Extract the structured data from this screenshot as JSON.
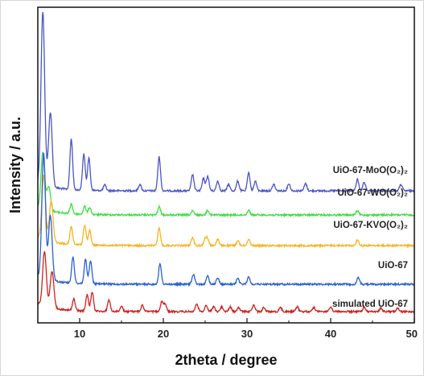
{
  "chart_data": {
    "type": "line",
    "title": "",
    "xlabel": "2theta / degree",
    "ylabel": "Intensity / a.u.",
    "xlim": [
      5,
      50
    ],
    "x_ticks": [
      10,
      20,
      30,
      40,
      50
    ],
    "y_ticks": [],
    "grid": false,
    "legend": "inline-right",
    "series": [
      {
        "name": "UiO-67-MoO(O₂)₂",
        "color": "#4b55c8",
        "baseline": 236,
        "peaks": [
          [
            5.6,
            215
          ],
          [
            6.5,
            92
          ],
          [
            9.0,
            63
          ],
          [
            10.5,
            45
          ],
          [
            11.1,
            40
          ],
          [
            13.0,
            7
          ],
          [
            17.2,
            8
          ],
          [
            19.5,
            42
          ],
          [
            23.5,
            20
          ],
          [
            24.8,
            15
          ],
          [
            25.3,
            18
          ],
          [
            26.5,
            12
          ],
          [
            27.8,
            8
          ],
          [
            28.9,
            12
          ],
          [
            30.2,
            22
          ],
          [
            31.0,
            12
          ],
          [
            33.2,
            8
          ],
          [
            35.0,
            9
          ],
          [
            37.0,
            9
          ],
          [
            43.2,
            14
          ],
          [
            44.0,
            10
          ],
          [
            48.4,
            8
          ]
        ]
      },
      {
        "name": "UiO-67-WO(O₂)₂",
        "color": "#3ee040",
        "baseline": 266,
        "peaks": [
          [
            5.6,
            70
          ],
          [
            6.3,
            30
          ],
          [
            9.0,
            12
          ],
          [
            10.6,
            10
          ],
          [
            11.2,
            9
          ],
          [
            19.5,
            10
          ],
          [
            23.5,
            5
          ],
          [
            25.3,
            6
          ],
          [
            30.2,
            6
          ],
          [
            43.2,
            5
          ]
        ]
      },
      {
        "name": "UiO-67-KVO(O₂)₂",
        "color": "#f5b521",
        "baseline": 304,
        "peaks": [
          [
            5.7,
            80
          ],
          [
            6.6,
            50
          ],
          [
            9.0,
            22
          ],
          [
            10.6,
            25
          ],
          [
            11.2,
            18
          ],
          [
            19.5,
            22
          ],
          [
            23.5,
            10
          ],
          [
            25.0,
            8
          ],
          [
            25.3,
            8
          ],
          [
            26.5,
            8
          ],
          [
            28.9,
            6
          ],
          [
            30.2,
            8
          ],
          [
            43.2,
            7
          ]
        ]
      },
      {
        "name": "UiO-67",
        "color": "#2a5fd8",
        "baseline": 352,
        "peaks": [
          [
            5.7,
            155
          ],
          [
            6.5,
            80
          ],
          [
            9.2,
            32
          ],
          [
            10.7,
            30
          ],
          [
            11.3,
            28
          ],
          [
            19.6,
            25
          ],
          [
            23.6,
            12
          ],
          [
            25.3,
            10
          ],
          [
            26.5,
            8
          ],
          [
            28.9,
            7
          ],
          [
            30.2,
            9
          ],
          [
            43.3,
            8
          ]
        ]
      },
      {
        "name": "simulated UiO-67",
        "color": "#d0211e",
        "baseline": 386,
        "peaks": [
          [
            5.8,
            68
          ],
          [
            6.7,
            45
          ],
          [
            9.3,
            14
          ],
          [
            10.9,
            20
          ],
          [
            11.5,
            24
          ],
          [
            13.5,
            14
          ],
          [
            15.0,
            6
          ],
          [
            17.5,
            8
          ],
          [
            19.8,
            12
          ],
          [
            20.2,
            10
          ],
          [
            24.0,
            10
          ],
          [
            25.1,
            8
          ],
          [
            26.0,
            6
          ],
          [
            27.0,
            6
          ],
          [
            28.0,
            6
          ],
          [
            29.0,
            5
          ],
          [
            30.8,
            8
          ],
          [
            32.0,
            5
          ],
          [
            34.0,
            5
          ],
          [
            36.0,
            6
          ],
          [
            38.0,
            5
          ],
          [
            40.0,
            5
          ],
          [
            44.0,
            5
          ],
          [
            46.0,
            4
          ],
          [
            48.0,
            4
          ]
        ]
      }
    ]
  }
}
